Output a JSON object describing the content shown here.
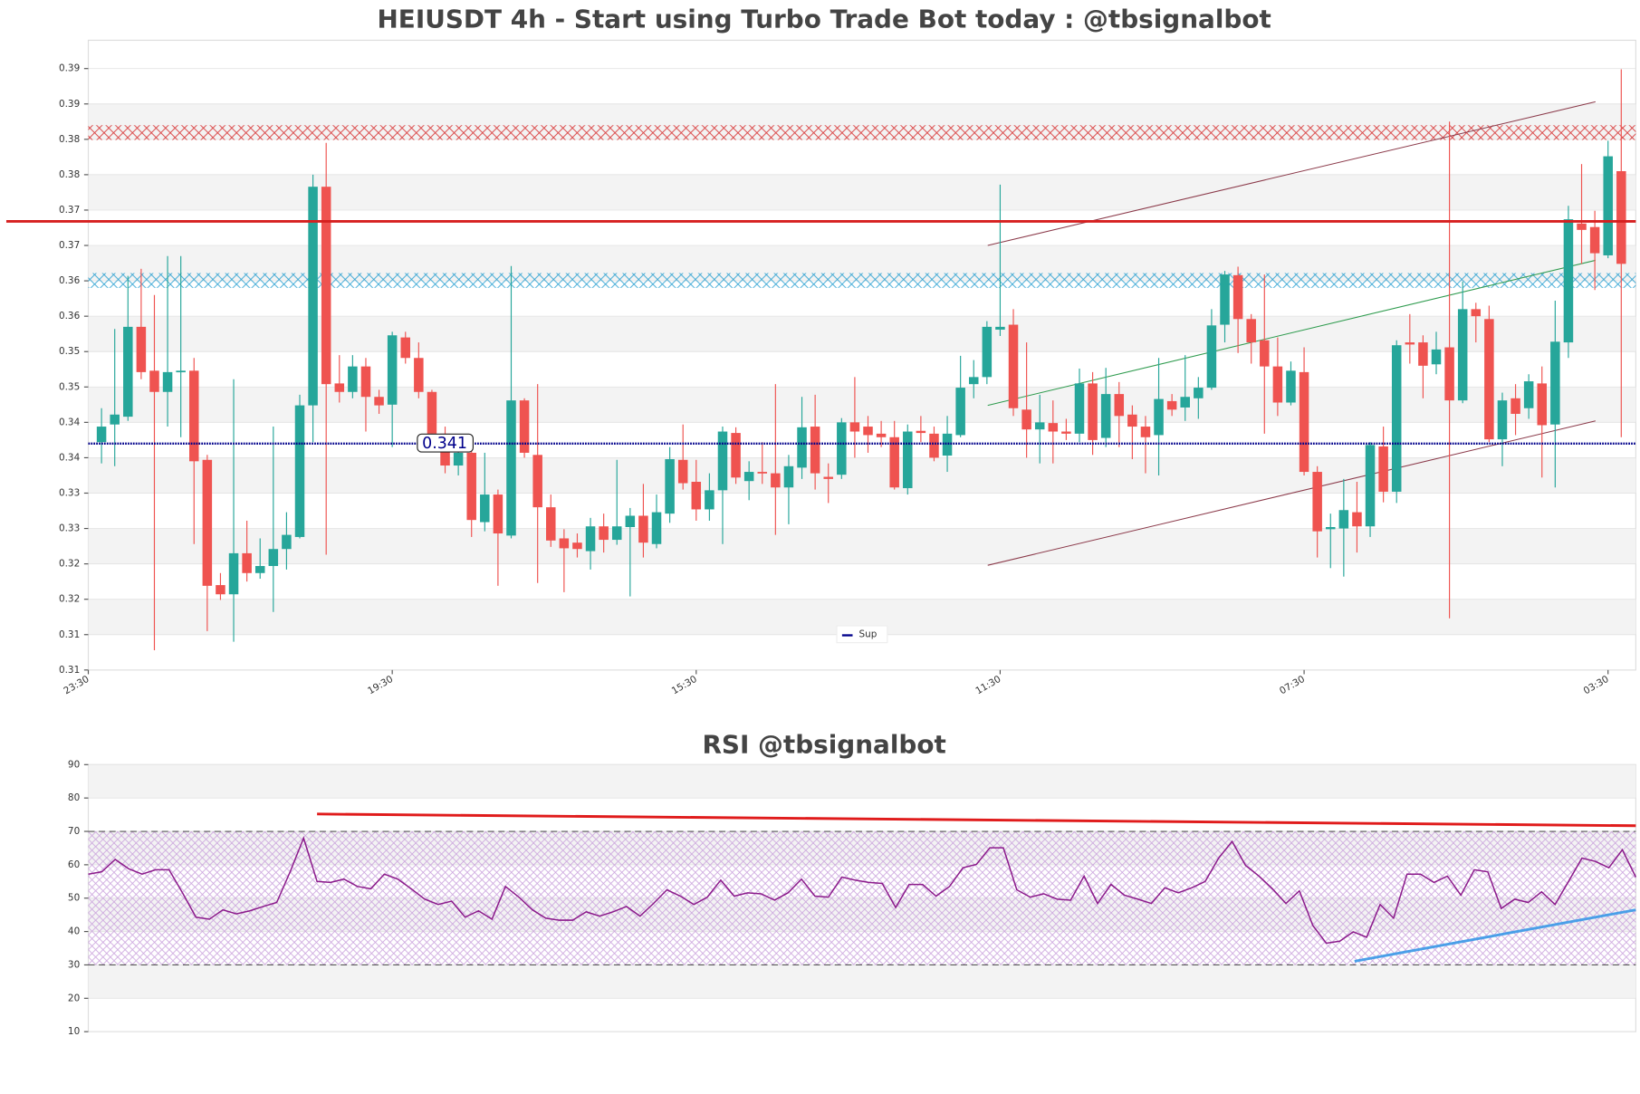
{
  "chart_data": [
    {
      "type": "candlestick",
      "title": "HEIUSDT 4h - Start using Turbo Trade Bot today : @tbsignalbot",
      "up_color": "#26a69a",
      "down_color": "#ef5350",
      "open": [
        0.3412,
        0.3437,
        0.3448,
        0.3575,
        0.3513,
        0.3483,
        0.3511,
        0.3513,
        0.3387,
        0.321,
        0.3197,
        0.3255,
        0.3227,
        0.3237,
        0.3261,
        0.3278,
        0.3464,
        0.3773,
        0.3495,
        0.3483,
        0.3519,
        0.3476,
        0.3465,
        0.356,
        0.3531,
        0.3483,
        0.3424,
        0.3379,
        0.3397,
        0.3299,
        0.3338,
        0.328,
        0.3471,
        0.3394,
        0.332,
        0.3276,
        0.327,
        0.3258,
        0.3293,
        0.3274,
        0.3292,
        0.3308,
        0.3268,
        0.3311,
        0.3387,
        0.3356,
        0.3317,
        0.3344,
        0.3425,
        0.3357,
        0.337,
        0.3368,
        0.3348,
        0.3376,
        0.3434,
        0.3363,
        0.3366,
        0.344,
        0.3434,
        0.3424,
        0.3419,
        0.3347,
        0.3428,
        0.3424,
        0.3393,
        0.3422,
        0.3494,
        0.3504,
        0.3571,
        0.3578,
        0.3458,
        0.343,
        0.3439,
        0.3427,
        0.3424,
        0.3495,
        0.3418,
        0.348,
        0.3451,
        0.3434,
        0.3422,
        0.347,
        0.3461,
        0.3474,
        0.3489,
        0.3578,
        0.3648,
        0.3586,
        0.3556,
        0.3519,
        0.3468,
        0.3511,
        0.337,
        0.3289,
        0.329,
        0.3313,
        0.3293,
        0.3406,
        0.3342,
        0.3553,
        0.3553,
        0.3522,
        0.3546,
        0.3471,
        0.36,
        0.3586,
        0.3416,
        0.3474,
        0.346,
        0.3495,
        0.3437,
        0.3553,
        0.3721,
        0.3716,
        0.3676,
        0.3795
      ],
      "high": [
        0.346,
        0.3572,
        0.3647,
        0.3657,
        0.362,
        0.3675,
        0.3675,
        0.3531,
        0.3394,
        0.3227,
        0.3501,
        0.3301,
        0.3276,
        0.3434,
        0.3313,
        0.3479,
        0.379,
        0.3835,
        0.3535,
        0.3535,
        0.3531,
        0.3486,
        0.3568,
        0.3568,
        0.3553,
        0.3486,
        0.3434,
        0.3405,
        0.3412,
        0.3397,
        0.3345,
        0.3661,
        0.3474,
        0.3494,
        0.3338,
        0.3289,
        0.3283,
        0.3305,
        0.3311,
        0.3387,
        0.3319,
        0.3353,
        0.3338,
        0.3405,
        0.3437,
        0.3387,
        0.3368,
        0.3434,
        0.3433,
        0.3385,
        0.3412,
        0.3494,
        0.3394,
        0.3476,
        0.3479,
        0.3382,
        0.3446,
        0.3504,
        0.3449,
        0.3442,
        0.3442,
        0.3437,
        0.3449,
        0.3434,
        0.3449,
        0.3534,
        0.3528,
        0.3583,
        0.3776,
        0.36,
        0.3553,
        0.3479,
        0.3471,
        0.3445,
        0.3516,
        0.3511,
        0.3517,
        0.3497,
        0.3464,
        0.3449,
        0.3531,
        0.348,
        0.3535,
        0.3504,
        0.36,
        0.3654,
        0.366,
        0.3593,
        0.3649,
        0.356,
        0.3526,
        0.3546,
        0.3378,
        0.3311,
        0.336,
        0.3356,
        0.3412,
        0.3434,
        0.3556,
        0.3593,
        0.3563,
        0.3568,
        0.3865,
        0.3639,
        0.3609,
        0.3605,
        0.3482,
        0.3494,
        0.3508,
        0.3519,
        0.3612,
        0.3746,
        0.3805,
        0.3739,
        0.3838,
        0.3939
      ],
      "low": [
        0.3382,
        0.3378,
        0.3442,
        0.3501,
        0.3118,
        0.3434,
        0.3419,
        0.3268,
        0.3145,
        0.3189,
        0.313,
        0.3215,
        0.3219,
        0.3172,
        0.3232,
        0.3276,
        0.3412,
        0.3253,
        0.3468,
        0.3474,
        0.3427,
        0.3452,
        0.3405,
        0.3523,
        0.3474,
        0.3415,
        0.3368,
        0.3365,
        0.3278,
        0.3286,
        0.3209,
        0.3276,
        0.339,
        0.3213,
        0.3264,
        0.32,
        0.3249,
        0.3232,
        0.3256,
        0.3267,
        0.3194,
        0.3249,
        0.3262,
        0.3298,
        0.3345,
        0.3301,
        0.3301,
        0.3268,
        0.3353,
        0.333,
        0.3353,
        0.3281,
        0.3296,
        0.336,
        0.3345,
        0.3326,
        0.336,
        0.339,
        0.3397,
        0.3405,
        0.3345,
        0.3338,
        0.3412,
        0.3385,
        0.337,
        0.3419,
        0.3474,
        0.3494,
        0.3562,
        0.3449,
        0.339,
        0.3382,
        0.3382,
        0.3415,
        0.3412,
        0.3394,
        0.3405,
        0.3405,
        0.3388,
        0.3368,
        0.3365,
        0.3449,
        0.3442,
        0.3445,
        0.3486,
        0.3553,
        0.3538,
        0.3523,
        0.3424,
        0.3449,
        0.3464,
        0.3365,
        0.3249,
        0.3234,
        0.3222,
        0.3256,
        0.3278,
        0.3327,
        0.3326,
        0.3523,
        0.3474,
        0.3508,
        0.3163,
        0.3467,
        0.3553,
        0.3412,
        0.3378,
        0.3422,
        0.3445,
        0.3362,
        0.3348,
        0.3531,
        0.3664,
        0.3627,
        0.3672,
        0.3419
      ],
      "close": [
        0.3434,
        0.3451,
        0.3575,
        0.3511,
        0.3483,
        0.3511,
        0.3513,
        0.3385,
        0.3209,
        0.3197,
        0.3255,
        0.3227,
        0.3237,
        0.3261,
        0.3281,
        0.3464,
        0.3773,
        0.3494,
        0.3483,
        0.3519,
        0.3476,
        0.3464,
        0.3563,
        0.3531,
        0.3483,
        0.3424,
        0.3379,
        0.3397,
        0.3302,
        0.3338,
        0.3283,
        0.3471,
        0.3397,
        0.332,
        0.3273,
        0.3262,
        0.3261,
        0.3293,
        0.3274,
        0.3293,
        0.3308,
        0.327,
        0.3313,
        0.3388,
        0.3354,
        0.3317,
        0.3344,
        0.3427,
        0.3362,
        0.337,
        0.3368,
        0.3348,
        0.3378,
        0.3433,
        0.3368,
        0.336,
        0.344,
        0.3427,
        0.3422,
        0.3419,
        0.3348,
        0.3427,
        0.3425,
        0.339,
        0.3424,
        0.3489,
        0.3504,
        0.3575,
        0.3575,
        0.346,
        0.343,
        0.344,
        0.3427,
        0.3424,
        0.3495,
        0.3415,
        0.348,
        0.3449,
        0.3434,
        0.3419,
        0.3473,
        0.3458,
        0.3476,
        0.3489,
        0.3577,
        0.3649,
        0.3586,
        0.3553,
        0.3519,
        0.3468,
        0.3513,
        0.337,
        0.3286,
        0.3292,
        0.3316,
        0.3293,
        0.3408,
        0.3342,
        0.3549,
        0.355,
        0.352,
        0.3543,
        0.3471,
        0.36,
        0.359,
        0.3416,
        0.3471,
        0.3452,
        0.3498,
        0.3436,
        0.3554,
        0.3727,
        0.3712,
        0.3679,
        0.3816,
        0.3664
      ],
      "xlim": [
        -1,
        116.1
      ],
      "xticks": [
        {
          "value": -1,
          "label": "23:30"
        },
        {
          "value": 22,
          "label": "19:30"
        },
        {
          "value": 45,
          "label": "15:30"
        },
        {
          "value": 68,
          "label": "11:30"
        },
        {
          "value": 91,
          "label": "07:30"
        },
        {
          "value": 114,
          "label": "03:30"
        }
      ],
      "ylim": [
        0.309,
        0.398
      ],
      "yticks": [
        {
          "value": 0.309,
          "label": "0.31"
        },
        {
          "value": 0.314,
          "label": "0.31"
        },
        {
          "value": 0.319,
          "label": "0.32"
        },
        {
          "value": 0.324,
          "label": "0.32"
        },
        {
          "value": 0.329,
          "label": "0.33"
        },
        {
          "value": 0.334,
          "label": "0.33"
        },
        {
          "value": 0.339,
          "label": "0.34"
        },
        {
          "value": 0.344,
          "label": "0.34"
        },
        {
          "value": 0.349,
          "label": "0.35"
        },
        {
          "value": 0.354,
          "label": "0.35"
        },
        {
          "value": 0.359,
          "label": "0.36"
        },
        {
          "value": 0.364,
          "label": "0.36"
        },
        {
          "value": 0.369,
          "label": "0.37"
        },
        {
          "value": 0.374,
          "label": "0.37"
        },
        {
          "value": 0.379,
          "label": "0.38"
        },
        {
          "value": 0.384,
          "label": "0.38"
        },
        {
          "value": 0.389,
          "label": "0.39"
        },
        {
          "value": 0.394,
          "label": "0.39"
        }
      ],
      "grid": true,
      "levels": [
        {
          "value": 0.3724,
          "color": "#d61f1f"
        },
        {
          "name": "Sup",
          "value": 0.341,
          "color": "#00008b"
        }
      ],
      "zones": [
        {
          "range": [
            0.3839,
            0.386
          ],
          "color": "#d62728"
        },
        {
          "range": [
            0.363,
            0.3651
          ],
          "color": "#1f9bcf"
        }
      ],
      "trend_lines": [
        {
          "x": [
            67.06,
            113.05
          ],
          "y": [
            0.369,
            0.3893
          ],
          "color": "#8b3a4a"
        },
        {
          "x": [
            67.06,
            113.05
          ],
          "y": [
            0.3238,
            0.3442
          ],
          "color": "#8b3a4a"
        },
        {
          "x": [
            67.06,
            113.05
          ],
          "y": [
            0.3464,
            0.3669
          ],
          "color": "#2e9b4e"
        }
      ],
      "legend": "lower center"
    },
    {
      "type": "line",
      "title": "RSI @tbsignalbot",
      "color": "#8b1a8b",
      "values": [
        57.2,
        57.9,
        61.6,
        58.8,
        57.2,
        58.5,
        58.5,
        51.6,
        44.3,
        43.7,
        46.5,
        45.3,
        46.2,
        47.5,
        48.7,
        57.9,
        68.0,
        55.0,
        54.7,
        55.7,
        53.5,
        52.8,
        57.2,
        55.7,
        52.8,
        49.7,
        48.1,
        49.1,
        44.3,
        46.2,
        43.7,
        53.5,
        50.3,
        46.5,
        44.0,
        43.4,
        43.4,
        45.9,
        44.6,
        45.9,
        47.5,
        44.6,
        48.4,
        52.5,
        50.6,
        48.1,
        50.3,
        55.4,
        50.6,
        51.6,
        51.3,
        49.4,
        51.6,
        55.7,
        50.6,
        50.3,
        56.3,
        55.4,
        54.7,
        54.4,
        47.2,
        54.1,
        54.1,
        50.6,
        53.5,
        59.1,
        60.1,
        65.1,
        65.1,
        52.5,
        50.3,
        51.3,
        49.7,
        49.4,
        56.6,
        48.4,
        54.1,
        50.9,
        49.7,
        48.4,
        53.1,
        51.6,
        53.1,
        55.0,
        62.0,
        67.0,
        59.8,
        56.6,
        52.8,
        48.4,
        52.2,
        41.8,
        36.5,
        37.1,
        39.9,
        38.3,
        48.1,
        44.0,
        57.2,
        57.2,
        54.7,
        56.6,
        50.9,
        58.5,
        57.9,
        46.9,
        49.7,
        48.7,
        51.9,
        48.1,
        55.0,
        62.0,
        61.0,
        59.1,
        64.5,
        56.3
      ],
      "xlim": [
        0,
        115
      ],
      "ylim": [
        10,
        90
      ],
      "yticks": [
        10,
        20,
        30,
        40,
        50,
        60,
        70,
        80,
        90
      ],
      "grid": true,
      "levels": [
        {
          "value": 30,
          "color": "#555555"
        },
        {
          "value": 70,
          "color": "#555555"
        }
      ],
      "zones": [
        {
          "range": [
            30,
            70
          ],
          "color": "#c9a0dc"
        }
      ],
      "trend_lines": [
        {
          "x": [
            17,
            115
          ],
          "y": [
            75.2,
            71.7
          ],
          "color": "#e01b1b"
        },
        {
          "x": [
            94.1,
            115
          ],
          "y": [
            31.1,
            46.5
          ],
          "color": "#4a9fe8"
        }
      ]
    }
  ]
}
